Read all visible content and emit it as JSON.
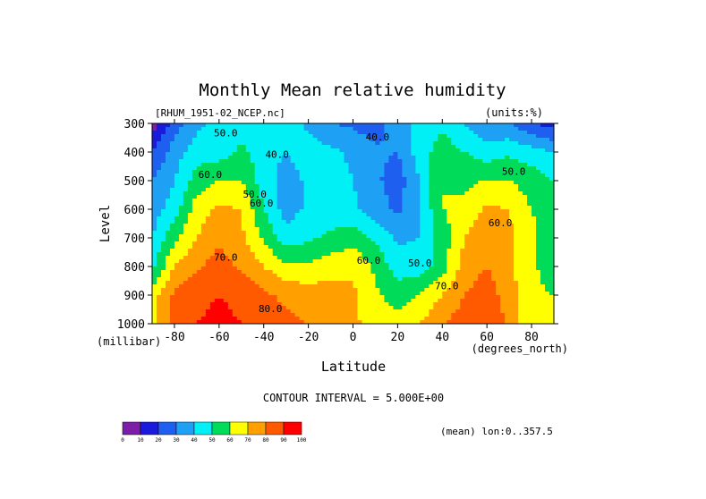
{
  "chart_data": {
    "type": "heatmap",
    "title": "Monthly Mean relative humidity",
    "dataset_label": "[RHUM_1951-02_NCEP.nc]",
    "units_label": "(units:%)",
    "xlabel": "Latitude",
    "x_units": "(degrees_north)",
    "ylabel": "Level",
    "y_units": "(millibar)",
    "xlim": [
      -90,
      90
    ],
    "ylim": [
      1000,
      300
    ],
    "x_ticks": [
      -80,
      -60,
      -40,
      -20,
      0,
      20,
      40,
      60,
      80
    ],
    "x_tick_labels": [
      "-80",
      "-60",
      "-40",
      "-20",
      "0",
      "20",
      "40",
      "60",
      "80"
    ],
    "y_ticks": [
      300,
      400,
      500,
      600,
      700,
      800,
      900,
      1000
    ],
    "y_tick_labels": [
      "300",
      "400",
      "500",
      "600",
      "700",
      "800",
      "900",
      "1000"
    ],
    "contour_interval_text": "CONTOUR INTERVAL = 5.000E+00",
    "mean_text": "(mean) lon:0..357.5",
    "colorbar": {
      "tick_labels": [
        "0",
        "10",
        "20",
        "30",
        "40",
        "50",
        "60",
        "70",
        "80",
        "90",
        "100"
      ],
      "colors": [
        "#7b1fa6",
        "#1a1adc",
        "#1e5ff0",
        "#1ea0f5",
        "#00f0f5",
        "#00dc5a",
        "#ffff00",
        "#ffa000",
        "#ff5a00",
        "#ff0000"
      ]
    },
    "contour_labels": [
      {
        "text": "50.0",
        "lat": -57,
        "lev": 345
      },
      {
        "text": "40.0",
        "lat": -34,
        "lev": 420
      },
      {
        "text": "40.0",
        "lat": 11,
        "lev": 360
      },
      {
        "text": "50.0",
        "lat": 72,
        "lev": 480
      },
      {
        "text": "60.0",
        "lat": -64,
        "lev": 490
      },
      {
        "text": "50.0",
        "lat": -44,
        "lev": 560
      },
      {
        "text": "60.0",
        "lat": -41,
        "lev": 590
      },
      {
        "text": "60.0",
        "lat": 66,
        "lev": 660
      },
      {
        "text": "70.0",
        "lat": -57,
        "lev": 780
      },
      {
        "text": "60.0",
        "lat": 7,
        "lev": 790
      },
      {
        "text": "50.0",
        "lat": 30,
        "lev": 800
      },
      {
        "text": "70.0",
        "lat": 42,
        "lev": 880
      },
      {
        "text": "80.0",
        "lat": -37,
        "lev": 960
      }
    ],
    "values_lat": [
      -90,
      -80,
      -70,
      -60,
      -50,
      -40,
      -30,
      -20,
      -10,
      0,
      10,
      20,
      30,
      40,
      50,
      60,
      70,
      80,
      90
    ],
    "values_lev": [
      300,
      400,
      500,
      600,
      700,
      800,
      900,
      1000
    ],
    "values": [
      [
        5,
        25,
        38,
        42,
        47,
        48,
        45,
        38,
        30,
        28,
        25,
        35,
        45,
        48,
        40,
        32,
        30,
        20,
        15
      ],
      [
        20,
        35,
        45,
        45,
        52,
        45,
        40,
        45,
        42,
        38,
        32,
        30,
        45,
        55,
        50,
        45,
        48,
        45,
        40
      ],
      [
        30,
        40,
        55,
        60,
        60,
        45,
        35,
        42,
        45,
        40,
        32,
        25,
        40,
        60,
        58,
        60,
        60,
        55,
        50
      ],
      [
        35,
        45,
        65,
        72,
        70,
        50,
        35,
        42,
        45,
        42,
        35,
        28,
        40,
        60,
        62,
        72,
        70,
        60,
        55
      ],
      [
        40,
        58,
        70,
        78,
        72,
        58,
        45,
        48,
        52,
        56,
        48,
        38,
        40,
        55,
        70,
        78,
        72,
        62,
        55
      ],
      [
        48,
        70,
        78,
        85,
        78,
        70,
        62,
        62,
        66,
        68,
        58,
        45,
        45,
        55,
        75,
        80,
        72,
        62,
        55
      ],
      [
        65,
        82,
        88,
        90,
        88,
        82,
        78,
        75,
        75,
        72,
        62,
        55,
        60,
        70,
        80,
        85,
        75,
        62,
        60
      ],
      [
        65,
        85,
        90,
        92,
        90,
        85,
        82,
        80,
        78,
        72,
        66,
        65,
        70,
        80,
        85,
        88,
        78,
        60,
        60
      ]
    ]
  }
}
